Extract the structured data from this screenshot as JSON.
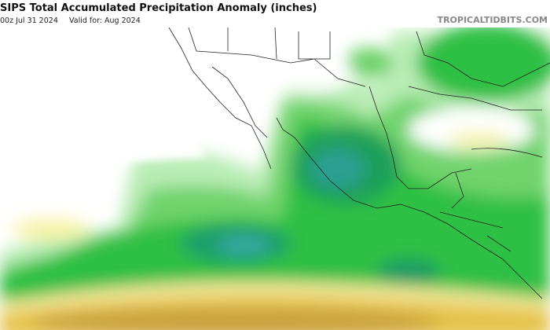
{
  "header": {
    "title": "SIPS Total Accumulated Precipitation Anomaly (inches)",
    "init": "00z Jul 31 2024",
    "valid": "Valid for: Aug 2024",
    "source": "TROPICALTIDBITS.COM"
  }
}
